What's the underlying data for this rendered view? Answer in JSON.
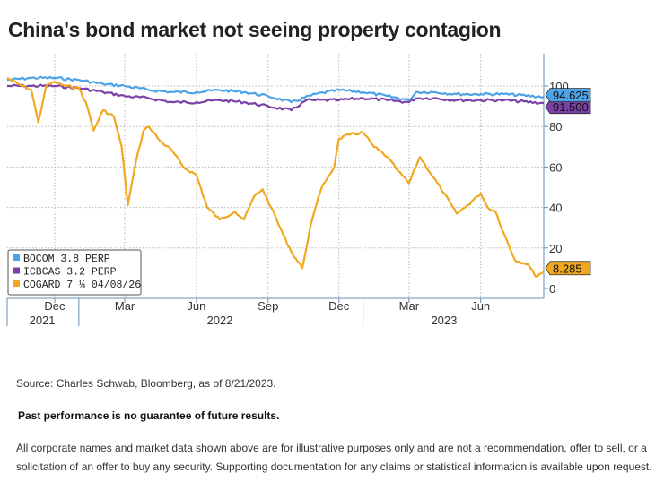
{
  "title": "China's bond market not seeing property contagion",
  "footer": {
    "source": "Source: Charles Schwab, Bloomberg, as of 8/21/2023.",
    "performance": "Past performance is no guarantee of future results.",
    "disclaimer": "All corporate names and market data shown above are for illustrative purposes only and are not a recommendation, offer to sell, or a solicitation of an offer to buy any security. Supporting documentation for any claims or statistical information is available upon request."
  },
  "colors": {
    "bocom": "#4da3e8",
    "icbcas": "#7b3fa8",
    "cogard": "#f0a81e",
    "grid": "#b7b7b7",
    "axis": "#6a8fb0"
  },
  "chart_data": {
    "type": "line",
    "x_range": [
      "2021-10-01",
      "2023-08-21"
    ],
    "ylim": [
      0,
      105
    ],
    "y_ticks": [
      0,
      20,
      40,
      60,
      80,
      100
    ],
    "y_tick_labels": [
      "0",
      "20",
      "40",
      "60",
      "80",
      "100"
    ],
    "x_month_ticks": [
      {
        "date": "2021-12-01",
        "label": "Dec"
      },
      {
        "date": "2022-03-01",
        "label": "Mar"
      },
      {
        "date": "2022-06-01",
        "label": "Jun"
      },
      {
        "date": "2022-09-01",
        "label": "Sep"
      },
      {
        "date": "2022-12-01",
        "label": "Dec"
      },
      {
        "date": "2023-03-01",
        "label": "Mar"
      },
      {
        "date": "2023-06-01",
        "label": "Jun"
      }
    ],
    "x_year_labels": [
      {
        "date": "2021-11-15",
        "label": "2021"
      },
      {
        "date": "2022-07-01",
        "label": "2022"
      },
      {
        "date": "2023-04-15",
        "label": "2023"
      }
    ],
    "x_year_separators": [
      "2022-01-01",
      "2023-01-01"
    ],
    "grid": true,
    "legend_position": "bottom-left",
    "series": [
      {
        "name": "BOCOM 3.8 PERP",
        "color": "#4da3e8",
        "last_label": "94.625",
        "points": [
          [
            "2021-10-01",
            103
          ],
          [
            "2021-11-01",
            104
          ],
          [
            "2021-12-01",
            104
          ],
          [
            "2022-01-01",
            103
          ],
          [
            "2022-02-01",
            101
          ],
          [
            "2022-03-01",
            100
          ],
          [
            "2022-04-01",
            98
          ],
          [
            "2022-05-01",
            97
          ],
          [
            "2022-06-01",
            97
          ],
          [
            "2022-07-01",
            98
          ],
          [
            "2022-08-01",
            97
          ],
          [
            "2022-09-01",
            95
          ],
          [
            "2022-10-01",
            92
          ],
          [
            "2022-11-01",
            96
          ],
          [
            "2022-12-01",
            98
          ],
          [
            "2023-01-01",
            97
          ],
          [
            "2023-02-01",
            95
          ],
          [
            "2023-03-01",
            93
          ],
          [
            "2023-03-10",
            97
          ],
          [
            "2023-04-01",
            97
          ],
          [
            "2023-05-01",
            96
          ],
          [
            "2023-06-01",
            96
          ],
          [
            "2023-07-01",
            96
          ],
          [
            "2023-08-21",
            94.625
          ]
        ]
      },
      {
        "name": "ICBCAS 3.2 PERP",
        "color": "#7b3fa8",
        "last_label": "91.500",
        "points": [
          [
            "2021-10-01",
            100
          ],
          [
            "2021-11-01",
            100
          ],
          [
            "2021-12-01",
            100
          ],
          [
            "2022-01-01",
            99
          ],
          [
            "2022-02-01",
            97
          ],
          [
            "2022-03-01",
            95
          ],
          [
            "2022-04-01",
            94
          ],
          [
            "2022-05-01",
            92
          ],
          [
            "2022-06-01",
            92
          ],
          [
            "2022-07-01",
            93
          ],
          [
            "2022-08-01",
            92
          ],
          [
            "2022-09-01",
            90
          ],
          [
            "2022-10-01",
            88
          ],
          [
            "2022-10-20",
            93
          ],
          [
            "2022-11-01",
            93
          ],
          [
            "2022-12-01",
            93
          ],
          [
            "2023-01-01",
            94
          ],
          [
            "2023-02-01",
            93
          ],
          [
            "2023-03-01",
            92
          ],
          [
            "2023-03-10",
            94
          ],
          [
            "2023-04-01",
            94
          ],
          [
            "2023-05-01",
            93
          ],
          [
            "2023-06-01",
            93
          ],
          [
            "2023-07-01",
            93
          ],
          [
            "2023-08-21",
            91.5
          ]
        ]
      },
      {
        "name": "COGARD 7 ¼ 04/08/26",
        "color": "#f0a81e",
        "last_label": "8.285",
        "points": [
          [
            "2021-10-01",
            104
          ],
          [
            "2021-10-15",
            101
          ],
          [
            "2021-11-01",
            98
          ],
          [
            "2021-11-10",
            82
          ],
          [
            "2021-11-20",
            100
          ],
          [
            "2021-12-01",
            102
          ],
          [
            "2021-12-15",
            100
          ],
          [
            "2022-01-01",
            99
          ],
          [
            "2022-01-10",
            92
          ],
          [
            "2022-01-20",
            78
          ],
          [
            "2022-02-01",
            88
          ],
          [
            "2022-02-15",
            85
          ],
          [
            "2022-02-25",
            70
          ],
          [
            "2022-03-05",
            41
          ],
          [
            "2022-03-15",
            62
          ],
          [
            "2022-03-25",
            78
          ],
          [
            "2022-04-01",
            80
          ],
          [
            "2022-04-15",
            73
          ],
          [
            "2022-05-01",
            68
          ],
          [
            "2022-05-15",
            60
          ],
          [
            "2022-06-01",
            56
          ],
          [
            "2022-06-15",
            40
          ],
          [
            "2022-07-01",
            34
          ],
          [
            "2022-07-20",
            38
          ],
          [
            "2022-08-01",
            34
          ],
          [
            "2022-08-15",
            46
          ],
          [
            "2022-08-25",
            49
          ],
          [
            "2022-09-05",
            40
          ],
          [
            "2022-09-20",
            27
          ],
          [
            "2022-10-01",
            18
          ],
          [
            "2022-10-15",
            10
          ],
          [
            "2022-10-25",
            30
          ],
          [
            "2022-11-01",
            40
          ],
          [
            "2022-11-10",
            51
          ],
          [
            "2022-11-25",
            60
          ],
          [
            "2022-12-01",
            74
          ],
          [
            "2022-12-15",
            76
          ],
          [
            "2023-01-01",
            77
          ],
          [
            "2023-01-15",
            70
          ],
          [
            "2023-02-01",
            65
          ],
          [
            "2023-02-15",
            58
          ],
          [
            "2023-03-01",
            52
          ],
          [
            "2023-03-15",
            65
          ],
          [
            "2023-04-01",
            55
          ],
          [
            "2023-04-15",
            47
          ],
          [
            "2023-05-01",
            37
          ],
          [
            "2023-05-15",
            41
          ],
          [
            "2023-06-01",
            47
          ],
          [
            "2023-06-10",
            40
          ],
          [
            "2023-06-20",
            38
          ],
          [
            "2023-07-01",
            27
          ],
          [
            "2023-07-15",
            14
          ],
          [
            "2023-08-01",
            12
          ],
          [
            "2023-08-10",
            6
          ],
          [
            "2023-08-21",
            8.285
          ]
        ]
      }
    ]
  }
}
